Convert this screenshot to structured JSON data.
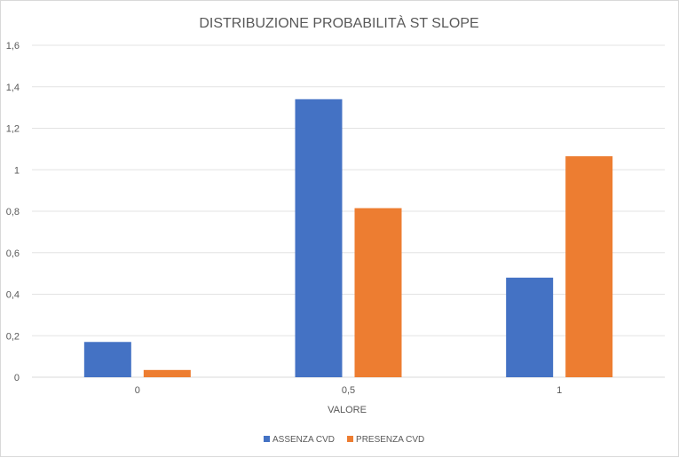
{
  "chart_data": {
    "type": "bar",
    "title": "DISTRIBUZIONE PROBABILITÀ ST SLOPE",
    "xlabel": "VALORE",
    "ylabel": "",
    "categories": [
      "0",
      "0,5",
      "1"
    ],
    "series": [
      {
        "name": "ASSENZA CVD",
        "color": "#4472C4",
        "values": [
          0.17,
          1.34,
          0.48
        ]
      },
      {
        "name": "PRESENZA CVD",
        "color": "#ED7D31",
        "values": [
          0.035,
          0.815,
          1.065
        ]
      }
    ],
    "ylim": [
      0,
      1.6
    ],
    "yticks": [
      "0",
      "0,2",
      "0,4",
      "0,6",
      "0,8",
      "1",
      "1,2",
      "1,4",
      "1,6"
    ],
    "ytick_values": [
      0,
      0.2,
      0.4,
      0.6,
      0.8,
      1.0,
      1.2,
      1.4,
      1.6
    ],
    "grid": true,
    "legend_position": "bottom"
  }
}
